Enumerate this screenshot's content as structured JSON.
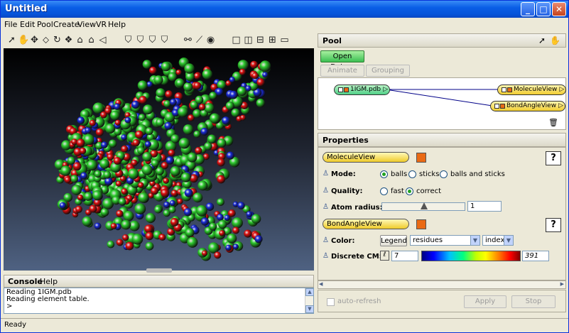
{
  "window": {
    "title": "Untitled"
  },
  "menu": [
    "File",
    "Edit",
    "Pool",
    "Create",
    "View",
    "VR",
    "Help"
  ],
  "viewer_toolbar": {
    "icons": [
      "pointer-icon",
      "hand-icon",
      "move-icon",
      "fly-icon",
      "rotate-icon",
      "dolly-icon",
      "home-icon",
      "set-home-icon",
      "view-all-icon",
      "camera-x-icon",
      "camera-y-icon",
      "camera-z-icon",
      "camera-iso-icon",
      "measure-2d-icon",
      "measure-3d-icon",
      "snapshot-icon",
      "layout-single-icon",
      "layout-vertical-icon",
      "layout-horizontal-icon",
      "layout-quad-icon",
      "layout-other-icon"
    ]
  },
  "console": {
    "title": "Console",
    "help": "Help",
    "lines": [
      "Reading 1IGM.pdb",
      "Reading element table.",
      ">"
    ]
  },
  "pool": {
    "title": "Pool",
    "open_data": "Open Data...",
    "animate": "Animate",
    "grouping": "Grouping",
    "nodes": {
      "source": "1IGM.pdb",
      "molecule_view": "MoleculeView",
      "bond_angle_view": "BondAngleView"
    }
  },
  "properties": {
    "title": "Properties",
    "molecule_view": {
      "name": "MoleculeView",
      "help": "?",
      "mode_label": "Mode:",
      "mode_options": [
        "balls",
        "sticks",
        "balls and sticks"
      ],
      "mode_selected": "balls",
      "quality_label": "Quality:",
      "quality_options": [
        "fast",
        "correct"
      ],
      "quality_selected": "correct",
      "atom_radius_label": "Atom radius:",
      "atom_radius_value": "1"
    },
    "bond_angle_view": {
      "name": "BondAngleView",
      "help": "?",
      "color_label": "Color:",
      "legend_button": "Legend",
      "color_select": "residues",
      "color_index": "index",
      "discrete_cm_label": "Discrete CM:",
      "cm_min": "7",
      "cm_max": "391"
    },
    "auto_refresh": "auto-refresh",
    "apply": "Apply",
    "stop": "Stop"
  },
  "status": "Ready",
  "colors": {
    "atom_green": "#2ecc2e",
    "atom_red": "#e01010",
    "atom_blue": "#1a2bd8",
    "accent_orange": "#ea6a14"
  }
}
